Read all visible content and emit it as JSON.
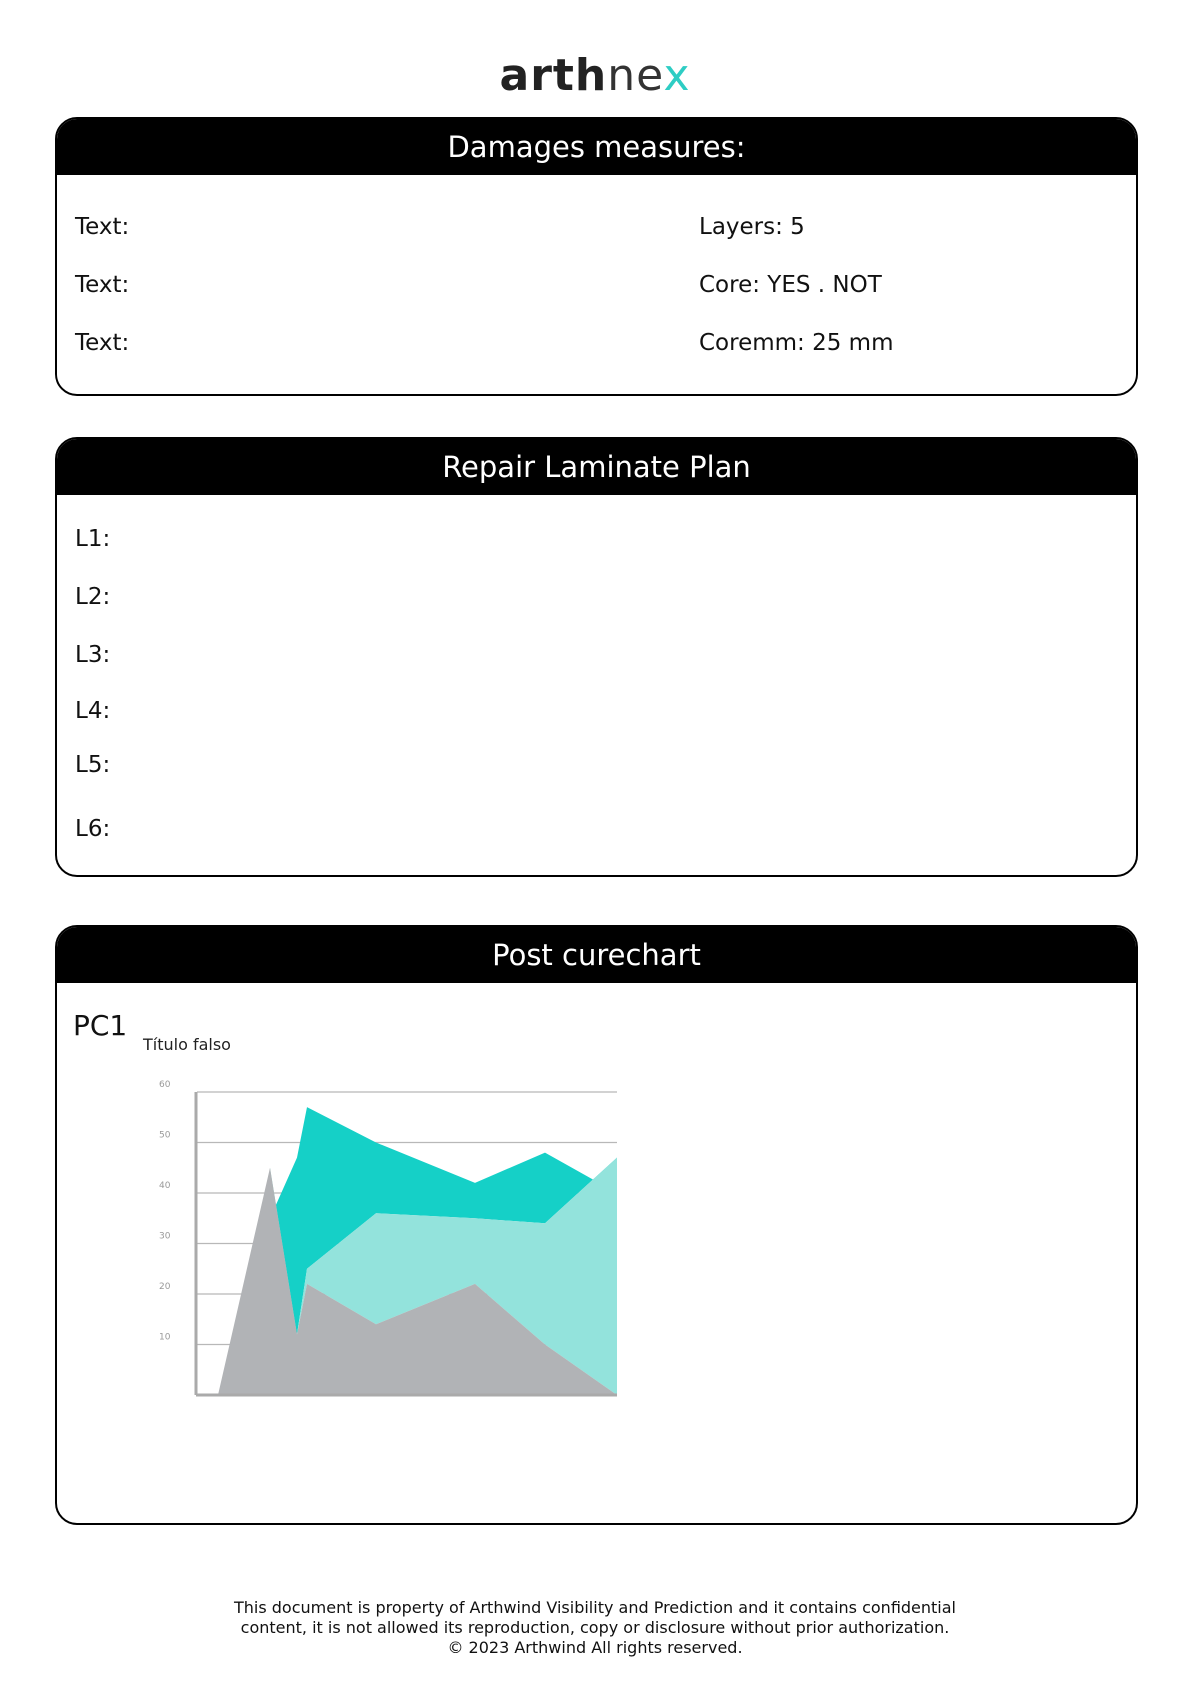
{
  "logo": {
    "bold": "arth",
    "light": "ne",
    "accent": "x",
    "accent_color": "#2ecdc4"
  },
  "damages": {
    "title": "Damages measures:",
    "left_fields": [
      "Text:",
      "Text:",
      "Text:"
    ],
    "right_fields": [
      "Layers: 5",
      "Core: YES . NOT",
      "Coremm: 25 mm"
    ]
  },
  "repair": {
    "title": "Repair Laminate Plan",
    "layers": [
      "L1:",
      "L2:",
      "L3:",
      "L4:",
      "L5:",
      "L6:"
    ]
  },
  "postcure": {
    "title": "Post curechart",
    "label": "PC1"
  },
  "chart_data": {
    "type": "area",
    "title": "Título falso",
    "xlabel": "",
    "ylabel": "",
    "ylim": [
      0,
      60
    ],
    "yticks": [
      10,
      20,
      30,
      40,
      50,
      60
    ],
    "grid": true,
    "x": [
      0,
      1,
      2,
      3,
      4,
      5,
      6,
      7
    ],
    "series": [
      {
        "values": [
          0,
          45,
          12,
          22,
          14,
          22,
          10,
          0
        ],
        "color": "#b1b3b6"
      },
      {
        "values": [
          null,
          35,
          12,
          25,
          36,
          35,
          34,
          47
        ],
        "color": "#93e3dc"
      },
      {
        "values": [
          null,
          35,
          47,
          57,
          50,
          42,
          48,
          40
        ],
        "color": "#15d0c7"
      }
    ]
  },
  "footer": {
    "line1": "This document is property of Arthwind Visibility and Prediction and it contains confidential",
    "line2": "content, it is not allowed its reproduction, copy or disclosure without prior authorization.",
    "line3": "© 2023 Arthwind All rights reserved."
  }
}
